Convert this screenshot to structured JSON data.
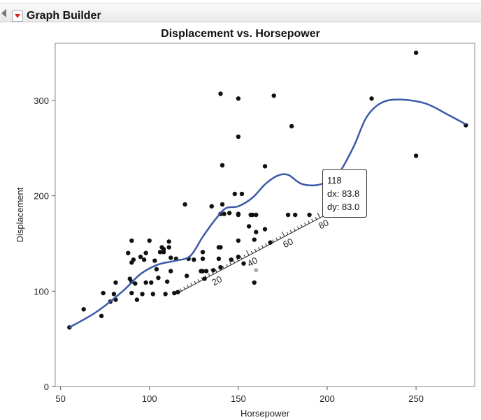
{
  "app": {
    "title": "Graph Builder"
  },
  "chart_data": {
    "type": "scatter",
    "title": "Displacement vs. Horsepower",
    "xlabel": "Horsepower",
    "ylabel": "Displacement",
    "xlim": [
      47,
      283
    ],
    "ylim": [
      0,
      360
    ],
    "x_ticks": [
      50,
      100,
      150,
      200,
      250
    ],
    "y_ticks": [
      0,
      100,
      200,
      300
    ],
    "points": [
      [
        55,
        62
      ],
      [
        63,
        81
      ],
      [
        73,
        74
      ],
      [
        74,
        98
      ],
      [
        78,
        89
      ],
      [
        80,
        97
      ],
      [
        81,
        109
      ],
      [
        81,
        91
      ],
      [
        88,
        140
      ],
      [
        89,
        113
      ],
      [
        90,
        153
      ],
      [
        90,
        130
      ],
      [
        90,
        110
      ],
      [
        90,
        98
      ],
      [
        91,
        133
      ],
      [
        92,
        108
      ],
      [
        93,
        91
      ],
      [
        95,
        136
      ],
      [
        96,
        97
      ],
      [
        97,
        133
      ],
      [
        98,
        109
      ],
      [
        98,
        140
      ],
      [
        100,
        153
      ],
      [
        101,
        109
      ],
      [
        102,
        97
      ],
      [
        103,
        132
      ],
      [
        104,
        123
      ],
      [
        105,
        114
      ],
      [
        106,
        141
      ],
      [
        107,
        146
      ],
      [
        108,
        141
      ],
      [
        108,
        144
      ],
      [
        109,
        97
      ],
      [
        110,
        110
      ],
      [
        111,
        152
      ],
      [
        111,
        146
      ],
      [
        112,
        121
      ],
      [
        112,
        135
      ],
      [
        114,
        98
      ],
      [
        115,
        134
      ],
      [
        116,
        99
      ],
      [
        120,
        191
      ],
      [
        121,
        116
      ],
      [
        122,
        134
      ],
      [
        125,
        133
      ],
      [
        129,
        121
      ],
      [
        130,
        121
      ],
      [
        130,
        141
      ],
      [
        130,
        134
      ],
      [
        131,
        113
      ],
      [
        132,
        121
      ],
      [
        135,
        189
      ],
      [
        136,
        122
      ],
      [
        139,
        146
      ],
      [
        139,
        134
      ],
      [
        140,
        181
      ],
      [
        140,
        146
      ],
      [
        140,
        125
      ],
      [
        141,
        232
      ],
      [
        140,
        307
      ],
      [
        141,
        191
      ],
      [
        142,
        181
      ],
      [
        145,
        182
      ],
      [
        146,
        133
      ],
      [
        148,
        202
      ],
      [
        150,
        302
      ],
      [
        150,
        262
      ],
      [
        150,
        181
      ],
      [
        150,
        180
      ],
      [
        150,
        153
      ],
      [
        150,
        136
      ],
      [
        152,
        202
      ],
      [
        153,
        129
      ],
      [
        156,
        168
      ],
      [
        157,
        180
      ],
      [
        158,
        180
      ],
      [
        159,
        109
      ],
      [
        159,
        154
      ],
      [
        160,
        180
      ],
      [
        160,
        162
      ],
      [
        165,
        231
      ],
      [
        165,
        165
      ],
      [
        168,
        151
      ],
      [
        170,
        305
      ],
      [
        178,
        180
      ],
      [
        180,
        273
      ],
      [
        182,
        180
      ],
      [
        190,
        180
      ],
      [
        200,
        180
      ],
      [
        225,
        302
      ],
      [
        250,
        350
      ],
      [
        250,
        242
      ],
      [
        278,
        274
      ]
    ],
    "smoother": [
      [
        55,
        62
      ],
      [
        70,
        78
      ],
      [
        85,
        100
      ],
      [
        95,
        118
      ],
      [
        105,
        128
      ],
      [
        115,
        132
      ],
      [
        123,
        137
      ],
      [
        130,
        157
      ],
      [
        137,
        175
      ],
      [
        143,
        187
      ],
      [
        150,
        189
      ],
      [
        158,
        198
      ],
      [
        165,
        212
      ],
      [
        172,
        221
      ],
      [
        178,
        222
      ],
      [
        185,
        213
      ],
      [
        193,
        211
      ],
      [
        200,
        215
      ],
      [
        207,
        225
      ],
      [
        215,
        252
      ],
      [
        222,
        282
      ],
      [
        230,
        297
      ],
      [
        240,
        301
      ],
      [
        255,
        297
      ],
      [
        268,
        285
      ],
      [
        278,
        275
      ]
    ],
    "tooltip": {
      "value": "118",
      "dx": "dx: 83.8",
      "dy": "dy: 83.0"
    },
    "ruler": {
      "ticks": [
        "20",
        "40",
        "60",
        "80"
      ]
    },
    "colors": {
      "points": "#111111",
      "smoother": "#3a5aa6",
      "ruler": "#222222",
      "hover_point": "#aaaaaa"
    }
  }
}
